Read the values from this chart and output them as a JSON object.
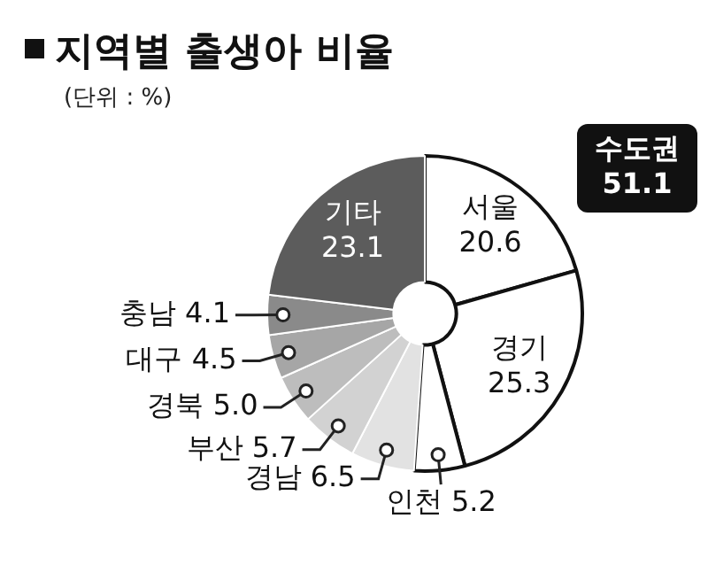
{
  "chart_data": {
    "type": "donut",
    "title": "지역별 출생아 비율",
    "subtitle": "(단위 : %)",
    "categories": [
      "서울",
      "경기",
      "인천",
      "경남",
      "부산",
      "경북",
      "대구",
      "충남",
      "기타"
    ],
    "values": [
      20.6,
      25.3,
      5.2,
      6.5,
      5.7,
      5.0,
      4.5,
      4.1,
      23.1
    ],
    "colors": [
      "#ffffff",
      "#ffffff",
      "#ffffff",
      "#e2e2e2",
      "#d2d2d2",
      "#bdbdbd",
      "#a6a6a6",
      "#8a8a8a",
      "#5c5c5c"
    ],
    "value_labels": [
      "20.6",
      "25.3",
      "5.2",
      "6.5",
      "5.7",
      "5.0",
      "4.5",
      "4.1",
      "23.1"
    ],
    "legend": false,
    "annotations": [
      "수도권 51.1"
    ]
  }
}
